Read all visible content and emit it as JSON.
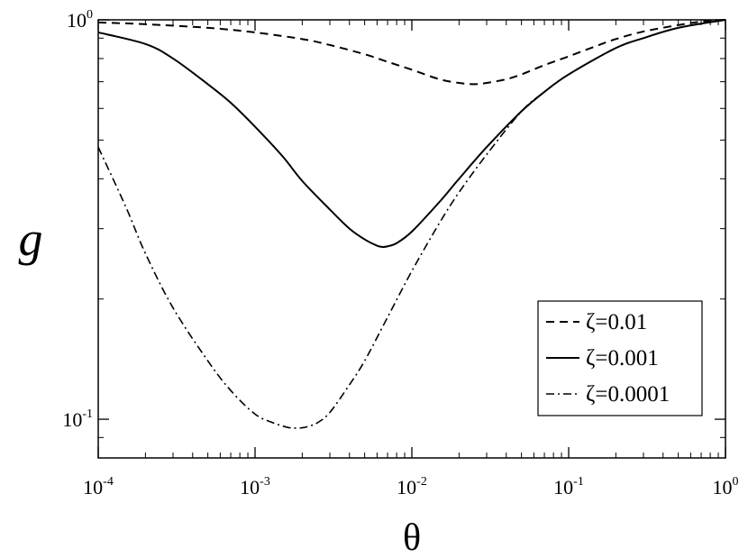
{
  "chart_data": {
    "type": "line",
    "xscale": "log",
    "yscale": "log",
    "xlim": [
      0.0001,
      1
    ],
    "ylim": [
      0.08,
      1
    ],
    "xlabel": "θ",
    "ylabel": "g",
    "grid": false,
    "legend_position": "bottom-right",
    "x_ticks": [
      {
        "base": "10",
        "exp": "-4",
        "value": 0.0001
      },
      {
        "base": "10",
        "exp": "-3",
        "value": 0.001
      },
      {
        "base": "10",
        "exp": "-2",
        "value": 0.01
      },
      {
        "base": "10",
        "exp": "-1",
        "value": 0.1
      },
      {
        "base": "10",
        "exp": "0",
        "value": 1
      }
    ],
    "y_ticks": [
      {
        "base": "10",
        "exp": "-1",
        "value": 0.1
      },
      {
        "base": "10",
        "exp": "0",
        "value": 1
      }
    ],
    "series": [
      {
        "name": "ζ=0.01",
        "style": "dashed",
        "x": [
          0.0001,
          0.0002,
          0.0005,
          0.001,
          0.002,
          0.003,
          0.005,
          0.007,
          0.01,
          0.015,
          0.02,
          0.025,
          0.03,
          0.04,
          0.05,
          0.07,
          0.1,
          0.15,
          0.2,
          0.3,
          0.5,
          0.7,
          1
        ],
        "y": [
          0.985,
          0.975,
          0.955,
          0.93,
          0.895,
          0.865,
          0.82,
          0.785,
          0.75,
          0.71,
          0.695,
          0.69,
          0.695,
          0.71,
          0.73,
          0.77,
          0.81,
          0.86,
          0.895,
          0.935,
          0.97,
          0.99,
          1.0
        ]
      },
      {
        "name": "ζ=0.001",
        "style": "solid",
        "x": [
          0.0001,
          0.0002,
          0.0003,
          0.0005,
          0.0007,
          0.001,
          0.0015,
          0.002,
          0.003,
          0.004,
          0.005,
          0.006,
          0.0065,
          0.007,
          0.008,
          0.01,
          0.015,
          0.02,
          0.03,
          0.05,
          0.07,
          0.1,
          0.2,
          0.3,
          0.5,
          1
        ],
        "y": [
          0.93,
          0.87,
          0.8,
          0.69,
          0.62,
          0.54,
          0.455,
          0.395,
          0.335,
          0.3,
          0.282,
          0.272,
          0.27,
          0.271,
          0.276,
          0.295,
          0.35,
          0.4,
          0.48,
          0.59,
          0.66,
          0.73,
          0.85,
          0.9,
          0.955,
          1.0
        ]
      },
      {
        "name": "ζ=0.0001",
        "style": "dashdot",
        "x": [
          0.0001,
          0.00015,
          0.0002,
          0.0003,
          0.0005,
          0.0007,
          0.001,
          0.0013,
          0.0016,
          0.0018,
          0.002,
          0.0022,
          0.0025,
          0.003,
          0.004,
          0.005,
          0.007,
          0.01,
          0.015,
          0.02,
          0.03,
          0.05,
          0.07,
          0.1,
          0.2,
          0.3,
          0.5,
          1
        ],
        "y": [
          0.48,
          0.34,
          0.26,
          0.19,
          0.14,
          0.118,
          0.103,
          0.098,
          0.0955,
          0.095,
          0.0952,
          0.096,
          0.098,
          0.104,
          0.122,
          0.14,
          0.18,
          0.235,
          0.31,
          0.37,
          0.46,
          0.59,
          0.66,
          0.73,
          0.85,
          0.9,
          0.955,
          1.0
        ]
      }
    ]
  }
}
